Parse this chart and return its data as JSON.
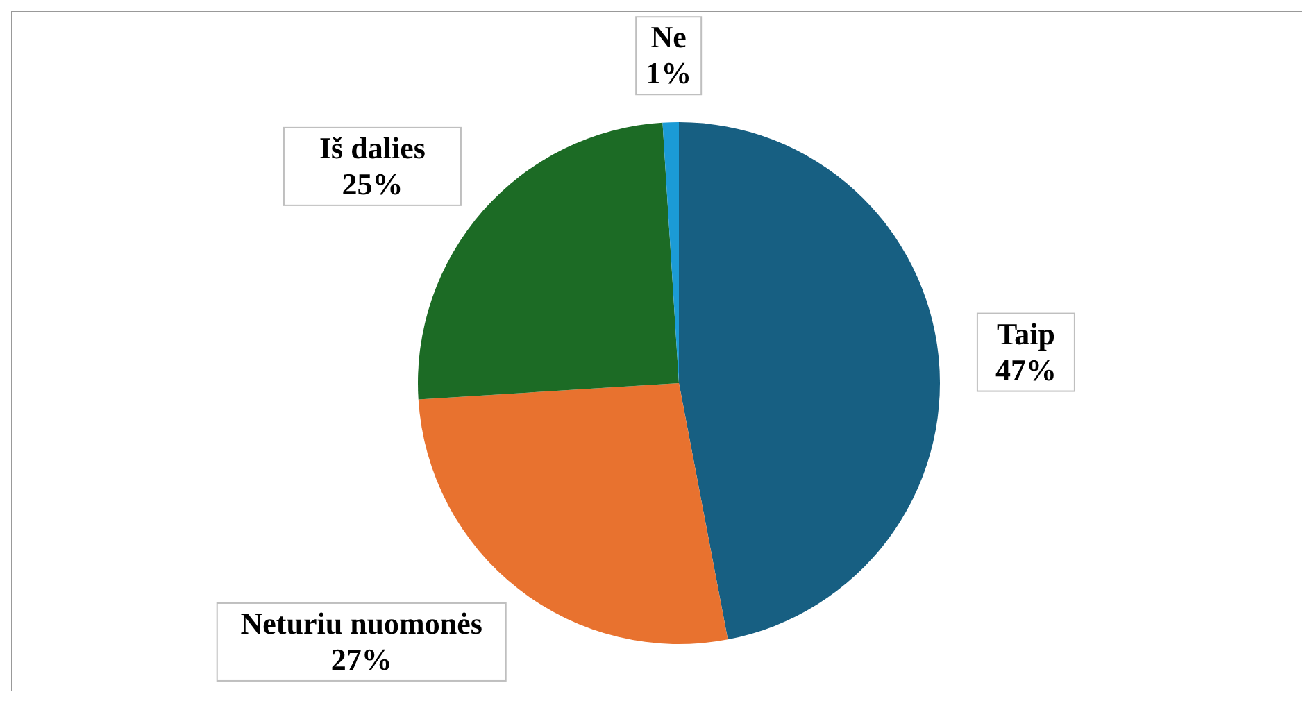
{
  "chart_data": {
    "type": "pie",
    "categories": [
      "Taip",
      "Neturiu nuomonės",
      "Iš dalies",
      "Ne"
    ],
    "values": [
      47,
      27,
      25,
      1
    ],
    "colors": [
      "#175f82",
      "#e8722f",
      "#1c6b25",
      "#1b9bd6"
    ],
    "value_labels": [
      "47%",
      "27%",
      "25%",
      "1%"
    ],
    "legend": false
  }
}
